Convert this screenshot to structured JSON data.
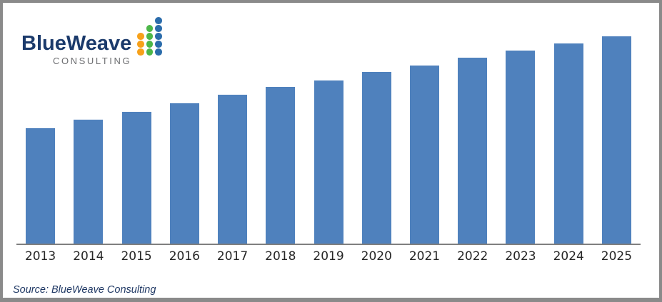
{
  "page": {
    "background": "#ffffff",
    "border_color": "#8a8a8a"
  },
  "logo": {
    "title": "BlueWeave",
    "subtitle": "CONSULTING",
    "title_color": "#1b3a6b",
    "subtitle_color": "#6d6e71",
    "dot_columns": [
      {
        "name": "orange-dot-column",
        "color": "#f7a11a",
        "count": 3
      },
      {
        "name": "green-dot-column",
        "color": "#4db748",
        "count": 4
      },
      {
        "name": "blue-dot-column",
        "color": "#2b6cab",
        "count": 5
      }
    ]
  },
  "chart_data": {
    "type": "bar",
    "title": "",
    "categories": [
      "2013",
      "2014",
      "2015",
      "2016",
      "2017",
      "2018",
      "2019",
      "2020",
      "2021",
      "2022",
      "2023",
      "2024",
      "2025"
    ],
    "values": [
      162,
      174,
      185,
      197,
      209,
      220,
      229,
      241,
      250,
      261,
      271,
      281,
      291
    ],
    "value_scale_note": "no y-axis, gridlines or data labels are shown; values are relative bar heights read from the image (pixels)",
    "bar_color": "#4f81bd",
    "axis_line_color": "#7f7f7f",
    "label_color": "#262626",
    "xlabel": "",
    "ylabel": "",
    "gridlines": false,
    "legend": null
  },
  "footer": {
    "source_label": "Source: BlueWeave Consulting",
    "color": "#1f3864"
  }
}
